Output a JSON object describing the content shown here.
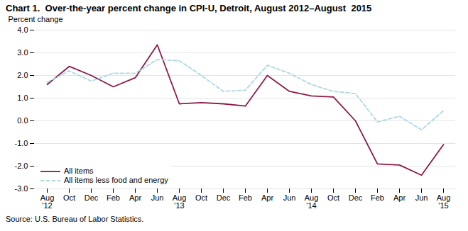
{
  "chart_data": {
    "type": "line",
    "title": "Chart 1.  Over-the-year percent change in CPI-U, Detroit, August 2012–August  2015",
    "y_label": "Percent change",
    "source": "Source: U.S. Bureau of Labor Statistics.",
    "categories": [
      "Aug\n'12",
      "Oct",
      "Dec",
      "Feb",
      "Apr",
      "Jun",
      "Aug\n'13",
      "Oct",
      "Dec",
      "Feb",
      "Apr",
      "Jun",
      "Aug\n'14",
      "Oct",
      "Dec",
      "Feb",
      "Apr",
      "Jun",
      "Aug\n'15"
    ],
    "series": [
      {
        "name": "All items",
        "color": "#8B1A4A",
        "line_style": "solid",
        "values": [
          1.6,
          2.4,
          2.0,
          1.5,
          1.9,
          3.35,
          0.75,
          0.8,
          0.75,
          0.65,
          2.0,
          1.3,
          1.1,
          1.05,
          0.0,
          -1.9,
          -1.95,
          -2.4,
          -1.05
        ]
      },
      {
        "name": "All items less food and energy",
        "color": "#ADD8E6",
        "line_style": "dashed",
        "values": [
          1.7,
          2.2,
          1.75,
          2.1,
          2.1,
          2.7,
          2.65,
          2.0,
          1.3,
          1.35,
          2.45,
          2.1,
          1.6,
          1.3,
          1.2,
          -0.05,
          0.2,
          -0.4,
          0.45
        ]
      }
    ],
    "ylim": [
      -3.0,
      4.0
    ],
    "yticks": [
      {
        "value": -3.0,
        "label": "-3.0"
      },
      {
        "value": -2.0,
        "label": "-2.0"
      },
      {
        "value": -1.0,
        "label": "-1.0"
      },
      {
        "value": 0.0,
        "label": "0.0"
      },
      {
        "value": 1.0,
        "label": "1.0"
      },
      {
        "value": 2.0,
        "label": "2.0"
      },
      {
        "value": 3.0,
        "label": "3.0"
      },
      {
        "value": 4.0,
        "label": "4.0"
      }
    ],
    "grid": true,
    "legend": "lower left"
  }
}
